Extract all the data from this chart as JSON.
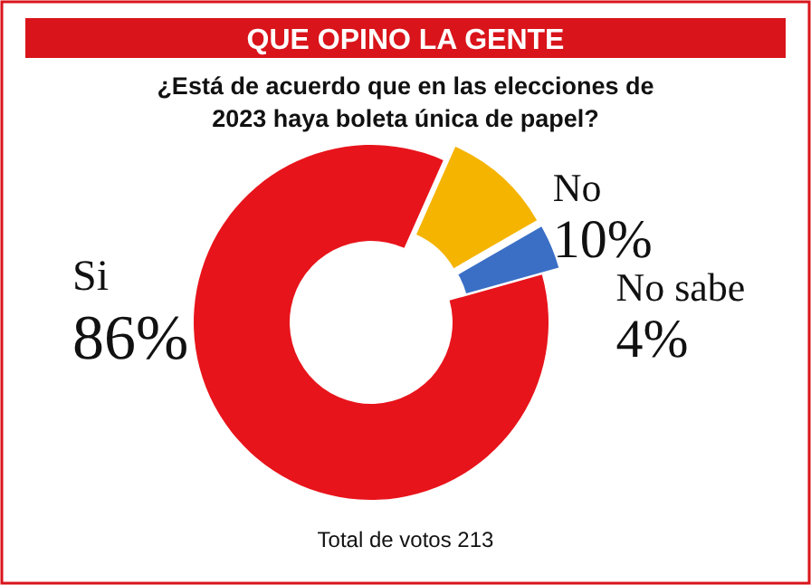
{
  "chart_data": {
    "type": "donut",
    "title": "QUE OPINO LA GENTE",
    "subtitle": "¿Está de acuerdo que en las elecciones de 2023 haya boleta única de papel?",
    "categories": [
      "Si",
      "No",
      "No sabe"
    ],
    "values": [
      86,
      10,
      4
    ],
    "colors": [
      "#e8141b",
      "#f5b400",
      "#3b6fc6"
    ],
    "value_labels": [
      "86%",
      "10%",
      "4%"
    ],
    "annotations": [
      "Total de votos 213"
    ]
  }
}
